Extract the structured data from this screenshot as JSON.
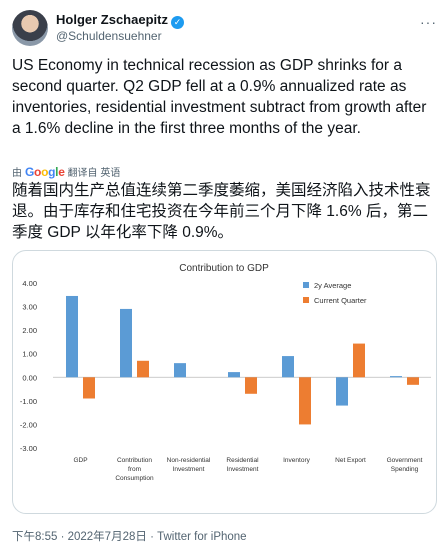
{
  "author": {
    "name": "Holger Zschaepitz",
    "handle": "@Schuldensuehner",
    "verified_icon": "verified-badge-icon"
  },
  "tweet": {
    "text": "US Economy in technical recession as GDP shrinks for a second quarter. Q2 GDP fell at a 0.9% annualized rate as inventories, residential investment subtract from growth after a 1.6% decline in the first three months of the year.",
    "translate_brand": "Google",
    "translate_label": "翻译自 英语",
    "translated_text": "随着国内生产总值连续第二季度萎缩，美国经济陷入技术性衰退。由于库存和住宅投资在今年前三个月下降 1.6% 后，第二季度 GDP 以年化率下降 0.9%。",
    "meta": "下午8:55 · 2022年7月28日 · Twitter for iPhone"
  },
  "chart_data": {
    "type": "bar",
    "title": "Contribution to GDP",
    "categories": [
      "GDP",
      "Contribution\nfrom\nConsumption",
      "Non-residential\nInvestment",
      "Residential\nInvestment",
      "Inventory",
      "Net Export",
      "Government\nSpending"
    ],
    "series": [
      {
        "name": "2y Average",
        "color": "#5b9bd5",
        "values": [
          3.45,
          2.9,
          0.6,
          0.22,
          0.9,
          -1.2,
          0.05
        ]
      },
      {
        "name": "Current Quarter",
        "color": "#ed7d31",
        "values": [
          -0.9,
          0.7,
          0.0,
          -0.7,
          -2.0,
          1.43,
          -0.32
        ]
      }
    ],
    "yticks": [
      "4.00",
      "3.00",
      "2.00",
      "1.00",
      "0.00",
      "-1.00",
      "-2.00",
      "-3.00"
    ],
    "ylim": [
      -3,
      4
    ],
    "grid": false,
    "legend": "top-right"
  }
}
